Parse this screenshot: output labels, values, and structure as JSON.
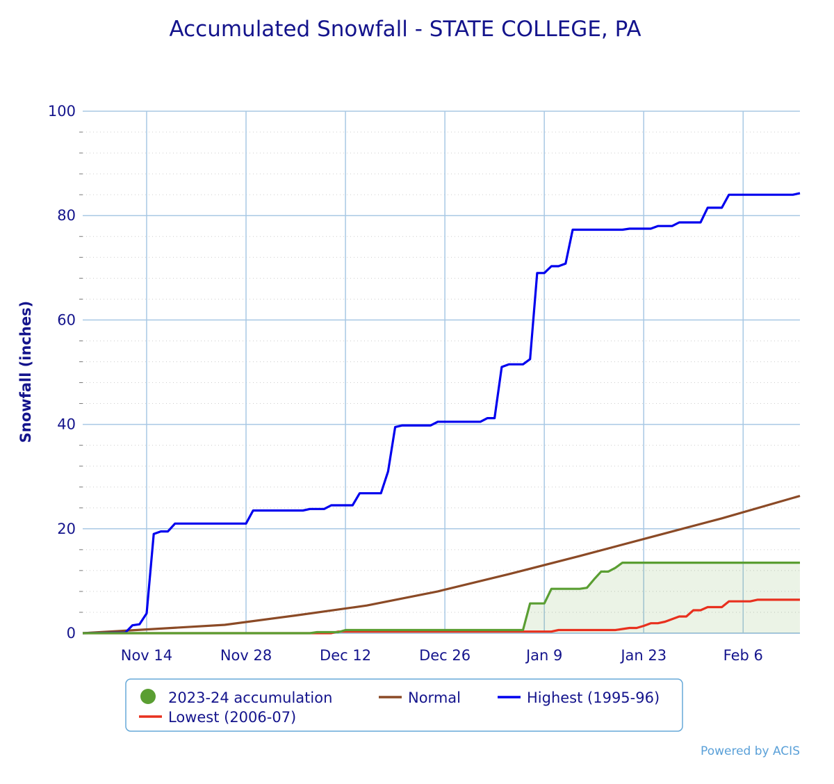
{
  "chart_data": {
    "type": "line",
    "title": "Accumulated Snowfall - STATE COLLEGE, PA",
    "ylabel": "Snowfall (inches)",
    "xlabel": "",
    "ylim": [
      0,
      100
    ],
    "yticks": [
      0,
      20,
      40,
      60,
      80,
      100
    ],
    "x_range_days": [
      0,
      101
    ],
    "xticks": [
      {
        "day": 9,
        "label": "Nov 14"
      },
      {
        "day": 23,
        "label": "Nov 28"
      },
      {
        "day": 37,
        "label": "Dec 12"
      },
      {
        "day": 51,
        "label": "Dec 26"
      },
      {
        "day": 65,
        "label": "Jan 9"
      },
      {
        "day": 79,
        "label": "Jan 23"
      },
      {
        "day": 93,
        "label": "Feb 6"
      }
    ],
    "grid": true,
    "legend_position": "bottom",
    "series": [
      {
        "name": "2023-24 accumulation",
        "color": "#5a9e32",
        "fill": "#5a9e32",
        "marker": "circle",
        "points": [
          [
            0,
            0
          ],
          [
            32,
            0
          ],
          [
            33,
            0.2
          ],
          [
            36,
            0.2
          ],
          [
            37,
            0.6
          ],
          [
            62,
            0.6
          ],
          [
            63,
            5.7
          ],
          [
            65,
            5.7
          ],
          [
            66,
            8.5
          ],
          [
            70,
            8.5
          ],
          [
            71,
            8.7
          ],
          [
            72,
            10.3
          ],
          [
            73,
            11.8
          ],
          [
            74,
            11.8
          ],
          [
            75,
            12.5
          ],
          [
            76,
            13.5
          ],
          [
            101,
            13.5
          ]
        ]
      },
      {
        "name": "Normal",
        "color": "#8b4a26",
        "points": [
          [
            0,
            0
          ],
          [
            5,
            0.4
          ],
          [
            10,
            0.8
          ],
          [
            20,
            1.6
          ],
          [
            30,
            3.4
          ],
          [
            40,
            5.3
          ],
          [
            50,
            8.0
          ],
          [
            60,
            11.3
          ],
          [
            70,
            14.8
          ],
          [
            80,
            18.4
          ],
          [
            90,
            22.0
          ],
          [
            101,
            26.3
          ]
        ]
      },
      {
        "name": "Highest (1995-96)",
        "color": "#0000ee",
        "points": [
          [
            0,
            0
          ],
          [
            6,
            0.1
          ],
          [
            7,
            1.5
          ],
          [
            8,
            1.7
          ],
          [
            9,
            3.8
          ],
          [
            10,
            19.0
          ],
          [
            11,
            19.5
          ],
          [
            12,
            19.5
          ],
          [
            13,
            21.0
          ],
          [
            23,
            21.0
          ],
          [
            24,
            23.5
          ],
          [
            31,
            23.5
          ],
          [
            32,
            23.8
          ],
          [
            34,
            23.8
          ],
          [
            35,
            24.5
          ],
          [
            38,
            24.5
          ],
          [
            39,
            26.8
          ],
          [
            42,
            26.8
          ],
          [
            43,
            31.0
          ],
          [
            44,
            39.5
          ],
          [
            45,
            39.8
          ],
          [
            49,
            39.8
          ],
          [
            50,
            40.5
          ],
          [
            56,
            40.5
          ],
          [
            57,
            41.2
          ],
          [
            58,
            41.2
          ],
          [
            59,
            51.0
          ],
          [
            60,
            51.5
          ],
          [
            62,
            51.5
          ],
          [
            63,
            52.5
          ],
          [
            64,
            69.0
          ],
          [
            65,
            69.0
          ],
          [
            66,
            70.3
          ],
          [
            67,
            70.3
          ],
          [
            68,
            70.8
          ],
          [
            69,
            77.3
          ],
          [
            76,
            77.3
          ],
          [
            77,
            77.5
          ],
          [
            80,
            77.5
          ],
          [
            81,
            78.0
          ],
          [
            83,
            78.0
          ],
          [
            84,
            78.7
          ],
          [
            87,
            78.7
          ],
          [
            88,
            81.5
          ],
          [
            90,
            81.5
          ],
          [
            91,
            84.0
          ],
          [
            100,
            84.0
          ],
          [
            101,
            84.3
          ]
        ]
      },
      {
        "name": "Lowest (2006-07)",
        "color": "#e8301e",
        "points": [
          [
            0,
            0
          ],
          [
            35,
            0
          ],
          [
            36,
            0.3
          ],
          [
            66,
            0.3
          ],
          [
            67,
            0.6
          ],
          [
            75,
            0.6
          ],
          [
            76,
            0.8
          ],
          [
            77,
            1.0
          ],
          [
            78,
            1.0
          ],
          [
            79,
            1.4
          ],
          [
            80,
            1.9
          ],
          [
            81,
            1.9
          ],
          [
            82,
            2.2
          ],
          [
            83,
            2.7
          ],
          [
            84,
            3.2
          ],
          [
            85,
            3.2
          ],
          [
            86,
            4.4
          ],
          [
            87,
            4.4
          ],
          [
            88,
            5.0
          ],
          [
            90,
            5.0
          ],
          [
            91,
            6.1
          ],
          [
            94,
            6.1
          ],
          [
            95,
            6.4
          ],
          [
            101,
            6.4
          ]
        ]
      }
    ]
  },
  "footer": {
    "credit": "Powered by ACIS"
  }
}
